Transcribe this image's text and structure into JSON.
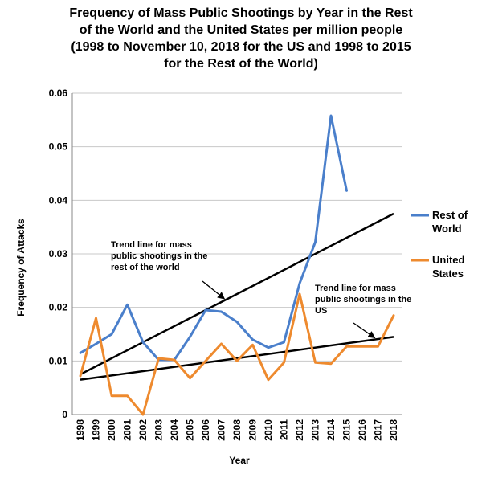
{
  "chart_data": {
    "type": "line",
    "title_lines": [
      "Frequency of Mass Public Shootings by Year in the Rest",
      "of the World and the United States per million people",
      "(1998 to November 10, 2018 for the US and 1998 to 2015",
      "for the Rest of the World)"
    ],
    "xlabel": "Year",
    "ylabel": "Frequency of Attacks",
    "x": [
      "1998",
      "1999",
      "2000",
      "2001",
      "2002",
      "2003",
      "2004",
      "2005",
      "2006",
      "2007",
      "2008",
      "2009",
      "2010",
      "2011",
      "2012",
      "2013",
      "2014",
      "2015",
      "2016",
      "2017",
      "2018"
    ],
    "ylim": [
      0,
      0.06
    ],
    "yticks": [
      "0",
      "0.01",
      "0.02",
      "0.03",
      "0.04",
      "0.05",
      "0.06"
    ],
    "grid": true,
    "legend_position": "right",
    "series": [
      {
        "name_lines": [
          "Rest of",
          "World"
        ],
        "color": "#4a7fcb",
        "values": [
          0.0115,
          0.0132,
          0.015,
          0.0205,
          0.0135,
          0.0102,
          0.0102,
          0.0145,
          0.0195,
          0.0192,
          0.0173,
          0.014,
          0.0125,
          0.0135,
          0.0245,
          0.0322,
          0.0558,
          0.0418,
          null,
          null,
          null
        ]
      },
      {
        "name_lines": [
          "United",
          "States"
        ],
        "color": "#ee8a2e",
        "values": [
          0.0072,
          0.018,
          0.0035,
          0.0035,
          0.0,
          0.0105,
          0.0102,
          0.0068,
          0.01,
          0.0132,
          0.01,
          0.013,
          0.0065,
          0.0097,
          0.0225,
          0.0097,
          0.0095,
          0.0127,
          0.0127,
          0.0127,
          0.0185
        ]
      }
    ],
    "trend_lines": [
      {
        "from": [
          0,
          0.0075
        ],
        "to": [
          20,
          0.0375
        ]
      },
      {
        "from": [
          0,
          0.0065
        ],
        "to": [
          20,
          0.0145
        ]
      }
    ],
    "annotations": [
      {
        "lines": [
          "Trend line for mass",
          "public shootings in the",
          "rest of the world"
        ],
        "arrow_to_index": 9.2
      },
      {
        "lines": [
          "Trend line for mass",
          "public shootings in the",
          "US"
        ],
        "arrow_to_index": 18.8
      }
    ]
  }
}
